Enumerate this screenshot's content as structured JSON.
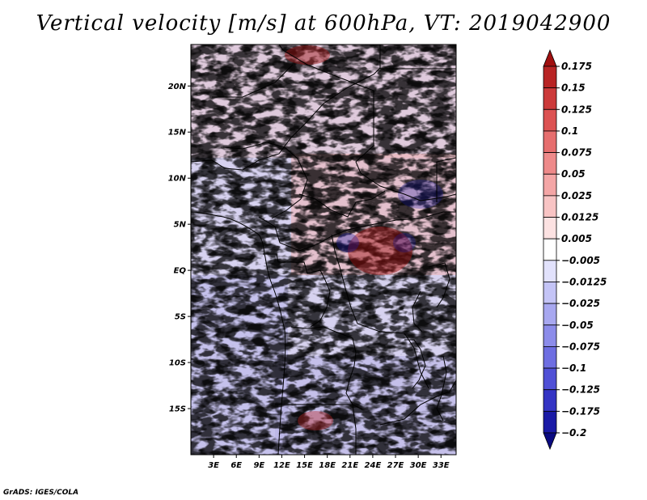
{
  "title": "Vertical velocity [m/s] at 600hPa, VT: 2019042900",
  "credit": "GrADS: IGES/COLA",
  "map": {
    "lat_range": [
      -20,
      24.5
    ],
    "lon_range": [
      0,
      35
    ],
    "lat_ticks": [
      {
        "label": "20N",
        "lat": 20
      },
      {
        "label": "15N",
        "lat": 15
      },
      {
        "label": "10N",
        "lat": 10
      },
      {
        "label": "5N",
        "lat": 5
      },
      {
        "label": "EQ",
        "lat": 0
      },
      {
        "label": "5S",
        "lat": -5
      },
      {
        "label": "10S",
        "lat": -10
      },
      {
        "label": "15S",
        "lat": -15
      }
    ],
    "lon_ticks": [
      {
        "label": "3E",
        "lon": 3
      },
      {
        "label": "6E",
        "lon": 6
      },
      {
        "label": "9E",
        "lon": 9
      },
      {
        "label": "12E",
        "lon": 12
      },
      {
        "label": "15E",
        "lon": 15
      },
      {
        "label": "18E",
        "lon": 18
      },
      {
        "label": "21E",
        "lon": 21
      },
      {
        "label": "24E",
        "lon": 24
      },
      {
        "label": "27E",
        "lon": 27
      },
      {
        "label": "30E",
        "lon": 30
      },
      {
        "label": "33E",
        "lon": 33
      }
    ]
  },
  "colorbar": {
    "labels": [
      "0.175",
      "0.15",
      "0.125",
      "0.1",
      "0.075",
      "0.05",
      "0.025",
      "0.0125",
      "0.005",
      "−0.005",
      "−0.0125",
      "−0.025",
      "−0.05",
      "−0.075",
      "−0.1",
      "−0.125",
      "−0.175",
      "−0.2"
    ],
    "colors": [
      "#a01010",
      "#b82424",
      "#cc3a3a",
      "#dc5252",
      "#e66e6e",
      "#ee8a8a",
      "#f4a6a6",
      "#f8c4c4",
      "#fce2e2",
      "#ffffff",
      "#e2e2fc",
      "#c4c4f6",
      "#a8a8f0",
      "#8c8cea",
      "#6e6ee2",
      "#5050d6",
      "#3434c4",
      "#1a1aa6",
      "#0a0a80"
    ]
  }
}
